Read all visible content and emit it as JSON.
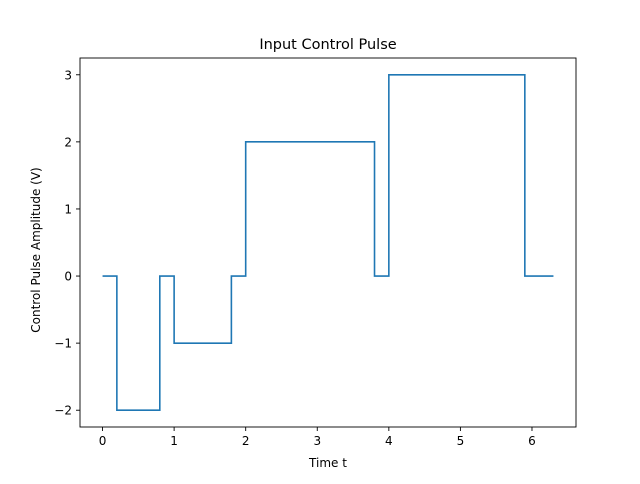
{
  "chart_data": {
    "type": "line",
    "title": "Input Control Pulse",
    "xlabel": "Time t",
    "ylabel": "Control Pulse Amplitude (V)",
    "xlim": [
      -0.315,
      6.615
    ],
    "ylim": [
      -2.25,
      3.25
    ],
    "grid": false,
    "line_style": "steps",
    "x_ticks": [
      0,
      1,
      2,
      3,
      4,
      5,
      6
    ],
    "x_tick_labels": [
      "0",
      "1",
      "2",
      "3",
      "4",
      "5",
      "6"
    ],
    "y_ticks": [
      -2,
      -1,
      0,
      1,
      2,
      3
    ],
    "y_tick_labels": [
      "−2",
      "−1",
      "0",
      "1",
      "2",
      "3"
    ],
    "series": [
      {
        "color": "#1f77b4",
        "points": [
          [
            0.0,
            0
          ],
          [
            0.2,
            0
          ],
          [
            0.2,
            -2
          ],
          [
            0.8,
            -2
          ],
          [
            0.8,
            0
          ],
          [
            1.0,
            0
          ],
          [
            1.0,
            -1
          ],
          [
            1.8,
            -1
          ],
          [
            1.8,
            0
          ],
          [
            2.0,
            0
          ],
          [
            2.0,
            2
          ],
          [
            3.8,
            2
          ],
          [
            3.8,
            0
          ],
          [
            4.0,
            0
          ],
          [
            4.0,
            3
          ],
          [
            5.9,
            3
          ],
          [
            5.9,
            0
          ],
          [
            6.3,
            0
          ]
        ]
      }
    ]
  }
}
